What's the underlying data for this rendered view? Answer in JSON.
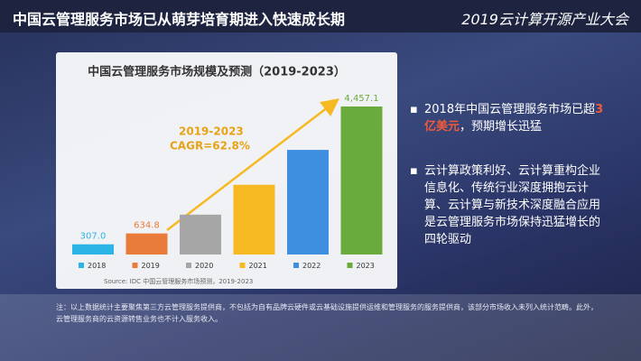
{
  "header": {
    "title": "中国云管理服务市场已从萌芽培育期进入快速成长期",
    "brand": "2019云计算开源产业大会"
  },
  "chart_data": {
    "type": "bar",
    "title": "中国云管理服务市场规模及预测（2019-2023）",
    "categories": [
      "2018",
      "2019",
      "2020",
      "2021",
      "2022",
      "2023"
    ],
    "values": [
      307.0,
      634.8,
      1200,
      2100,
      3150,
      4457.1
    ],
    "value_labels": [
      "307.0",
      "634.8",
      null,
      null,
      null,
      "4,457.1"
    ],
    "colors": [
      "#2bb5e6",
      "#e97b3b",
      "#a6a6a6",
      "#f6b921",
      "#3f8fe0",
      "#6aab3d"
    ],
    "annotation": [
      "2019-2023",
      "CAGR=62.8%"
    ],
    "source": "Source: IDC 中国云管理服务市场预测，2019-2023"
  },
  "bullets": [
    {
      "parts": [
        "2018年中国云管理服务市场已超",
        "3亿美元",
        "，预期增长迅猛"
      ]
    },
    {
      "parts": [
        "云计算政策利好、云计算重构企业信息化、传统行业深度拥抱云计算、云计算与新技术深度融合应用是云管理服务市场保持迅猛增长的四轮驱动"
      ]
    }
  ],
  "note": "注：以上数据统计主要聚焦第三方云管理服务提供商，不包括为自有品牌云硬件或云基础设施提供运维和管理服务的服务提供商，该部分市场收入未列入统计范畴。此外，云管理服务商的云资源转售业务也不计入服务收入。"
}
